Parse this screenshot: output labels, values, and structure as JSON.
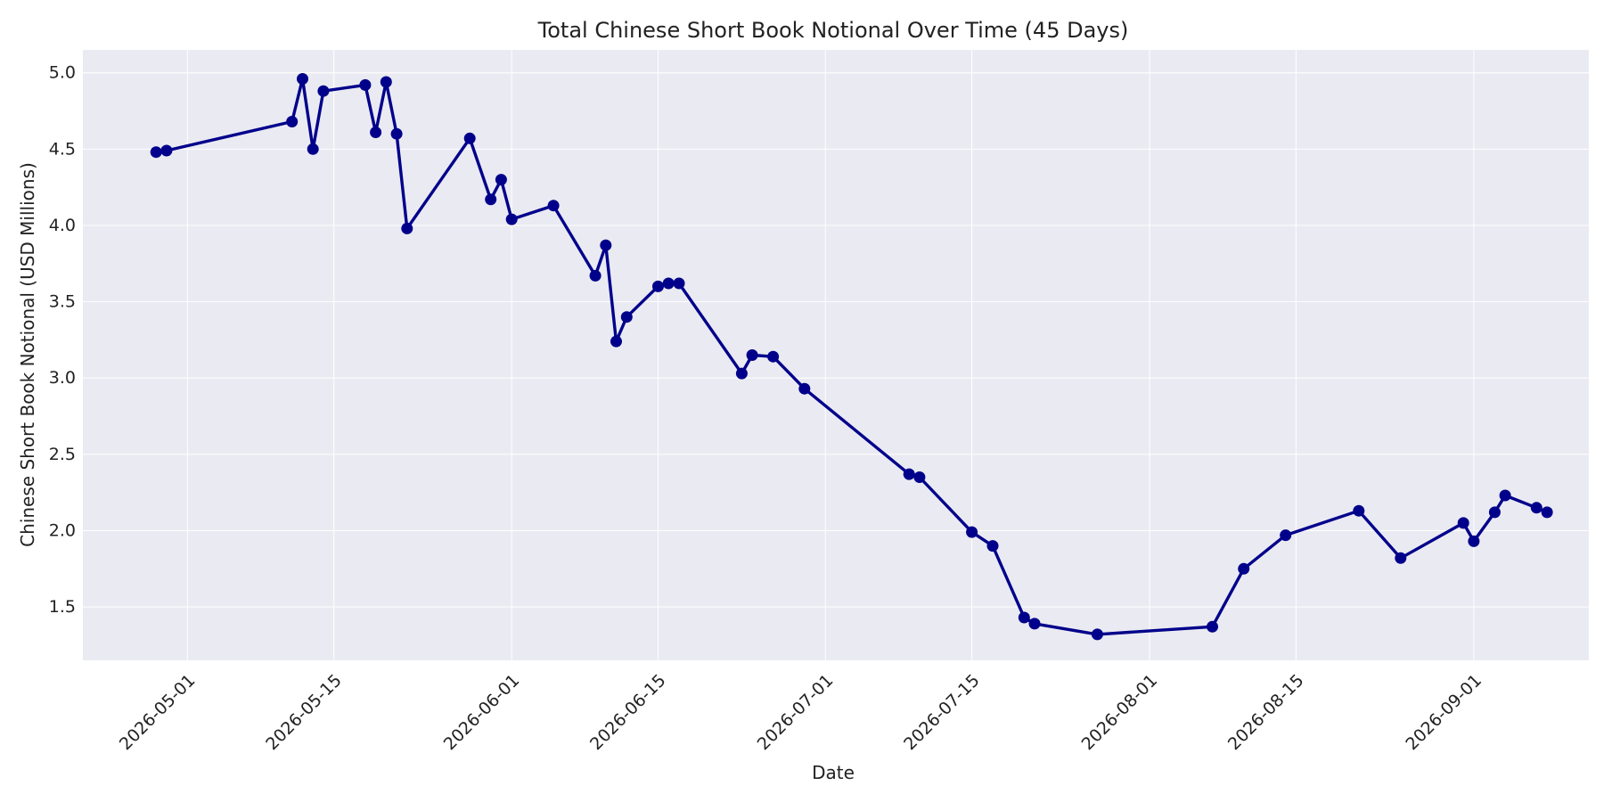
{
  "chart_data": {
    "type": "line",
    "title": "Total Chinese Short Book Notional Over Time (45 Days)",
    "xlabel": "Date",
    "ylabel": "Chinese Short Book Notional (USD Millions)",
    "x_axis_type": "date",
    "xlim": [
      "2026-04-21",
      "2026-09-12"
    ],
    "ylim": [
      1.15,
      5.15
    ],
    "x_ticks": [
      "2026-05-01",
      "2026-05-15",
      "2026-06-01",
      "2026-06-15",
      "2026-07-01",
      "2026-07-15",
      "2026-08-01",
      "2026-08-15",
      "2026-09-01"
    ],
    "y_ticks": [
      "1.5",
      "2.0",
      "2.5",
      "3.0",
      "3.5",
      "4.0",
      "4.5",
      "5.0"
    ],
    "grid": true,
    "colors": {
      "line": "#00008b",
      "plot_bg": "#eaeaf2",
      "grid": "#ffffff"
    },
    "series": [
      {
        "x": [
          "2026-04-28",
          "2026-04-29",
          "2026-05-11",
          "2026-05-12",
          "2026-05-13",
          "2026-05-14",
          "2026-05-18",
          "2026-05-19",
          "2026-05-20",
          "2026-05-21",
          "2026-05-22",
          "2026-05-28",
          "2026-05-30",
          "2026-05-31",
          "2026-06-01",
          "2026-06-05",
          "2026-06-09",
          "2026-06-10",
          "2026-06-11",
          "2026-06-12",
          "2026-06-15",
          "2026-06-16",
          "2026-06-17",
          "2026-06-23",
          "2026-06-24",
          "2026-06-26",
          "2026-06-29",
          "2026-07-09",
          "2026-07-10",
          "2026-07-15",
          "2026-07-17",
          "2026-07-20",
          "2026-07-21",
          "2026-07-27",
          "2026-08-07",
          "2026-08-10",
          "2026-08-14",
          "2026-08-21",
          "2026-08-25",
          "2026-08-31",
          "2026-09-01",
          "2026-09-03",
          "2026-09-04",
          "2026-09-07",
          "2026-09-08"
        ],
        "values": [
          4.48,
          4.49,
          4.68,
          4.96,
          4.5,
          4.88,
          4.92,
          4.61,
          4.94,
          4.6,
          3.98,
          4.57,
          4.17,
          4.3,
          4.04,
          4.13,
          3.67,
          3.87,
          3.24,
          3.4,
          3.6,
          3.62,
          3.62,
          3.03,
          3.15,
          3.14,
          2.93,
          2.37,
          2.35,
          1.99,
          1.9,
          1.43,
          1.39,
          1.32,
          1.37,
          1.75,
          1.97,
          2.13,
          1.82,
          2.05,
          1.93,
          2.12,
          2.23,
          2.15,
          2.12
        ]
      }
    ]
  }
}
